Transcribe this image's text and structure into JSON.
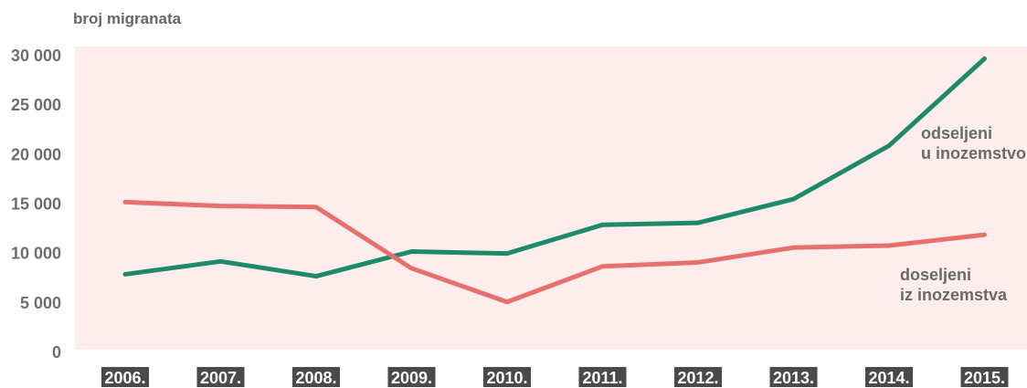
{
  "chart_data": {
    "type": "line",
    "ylabel": "broj migranata",
    "xlabel": "",
    "categories": [
      "2006.",
      "2007.",
      "2008.",
      "2009.",
      "2010.",
      "2011.",
      "2012.",
      "2013.",
      "2014.",
      "2015."
    ],
    "ylim": [
      0,
      30000
    ],
    "yticks": [
      0,
      5000,
      10000,
      15000,
      20000,
      25000,
      30000
    ],
    "ytick_labels": [
      "0",
      "5 000",
      "10 000",
      "15 000",
      "20 000",
      "25 000",
      "30 000"
    ],
    "grid": false,
    "series": [
      {
        "name_lines": [
          "odseljeni",
          "u inozemstvo"
        ],
        "color": "#1e8a6a",
        "values": [
          7900,
          9200,
          7700,
          10200,
          10000,
          12900,
          13100,
          15500,
          20900,
          29700
        ]
      },
      {
        "name_lines": [
          "doseljeni",
          "iz inozemstva"
        ],
        "color": "#e8706c",
        "values": [
          15200,
          14800,
          14700,
          8500,
          5100,
          8700,
          9100,
          10600,
          10800,
          11900
        ]
      }
    ]
  },
  "colors": {
    "plot_background": "#fdeeed",
    "tick_badge": "#4a4a4a"
  }
}
